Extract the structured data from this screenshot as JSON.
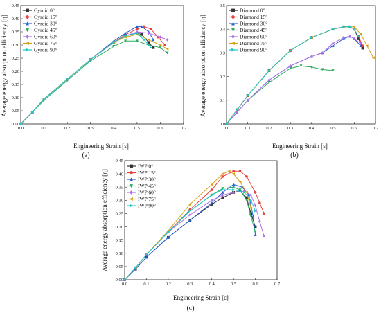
{
  "figure": {
    "panels": [
      {
        "label": "(a)",
        "xlabel": "Engineering Strain [ε]",
        "ylabel": "Average energy absorption efficiency [η]"
      },
      {
        "label": "(b)",
        "xlabel": "Engineering Strain [ε]",
        "ylabel": "Average energy absorption efficiency [η]"
      },
      {
        "label": "(c)",
        "xlabel": "Engineering Strain [ε]",
        "ylabel": "Average energy absorption efficiency [η]"
      }
    ]
  },
  "chart_data": [
    {
      "type": "line",
      "title": "",
      "xlabel": "Engineering Strain [ε]",
      "ylabel": "Average energy absorption efficiency [η]",
      "xlim": [
        0,
        0.7
      ],
      "ylim": [
        0,
        0.45
      ],
      "xticks": [
        "0.0",
        "0.1",
        "0.2",
        "0.3",
        "0.4",
        "0.5",
        "0.6",
        "0.7"
      ],
      "yticks": [
        "0.00",
        "0.05",
        "0.10",
        "0.15",
        "0.20",
        "0.25",
        "0.30",
        "0.35",
        "0.40",
        "0.45"
      ],
      "grid": false,
      "legend_position": "top-left",
      "series": [
        {
          "name": "Gyroid 0°",
          "color": "#333333",
          "marker": "square",
          "x": [
            0,
            0.05,
            0.1,
            0.2,
            0.3,
            0.4,
            0.45,
            0.5,
            0.52,
            0.55,
            0.57
          ],
          "y": [
            0,
            0.045,
            0.095,
            0.17,
            0.245,
            0.31,
            0.335,
            0.345,
            0.34,
            0.31,
            0.29
          ]
        },
        {
          "name": "Gyroid 15°",
          "color": "#e8413c",
          "marker": "circle",
          "x": [
            0,
            0.05,
            0.1,
            0.2,
            0.3,
            0.4,
            0.45,
            0.5,
            0.53,
            0.56,
            0.59,
            0.62
          ],
          "y": [
            0,
            0.045,
            0.095,
            0.17,
            0.245,
            0.31,
            0.34,
            0.36,
            0.37,
            0.36,
            0.33,
            0.3
          ]
        },
        {
          "name": "Gyroid 30°",
          "color": "#2b5fd1",
          "marker": "triangle-up",
          "x": [
            0,
            0.05,
            0.1,
            0.2,
            0.3,
            0.4,
            0.45,
            0.5,
            0.52,
            0.55,
            0.57
          ],
          "y": [
            0,
            0.045,
            0.095,
            0.17,
            0.245,
            0.315,
            0.345,
            0.37,
            0.37,
            0.35,
            0.32
          ]
        },
        {
          "name": "Gyroid 45°",
          "color": "#2aaa5e",
          "marker": "triangle-down",
          "x": [
            0,
            0.05,
            0.1,
            0.2,
            0.3,
            0.4,
            0.45,
            0.5,
            0.55,
            0.6,
            0.63
          ],
          "y": [
            0,
            0.045,
            0.09,
            0.165,
            0.24,
            0.295,
            0.315,
            0.315,
            0.3,
            0.29,
            0.27
          ]
        },
        {
          "name": "Gyroid 60°",
          "color": "#b26ee8",
          "marker": "diamond",
          "x": [
            0,
            0.05,
            0.1,
            0.2,
            0.3,
            0.4,
            0.45,
            0.5,
            0.55,
            0.6,
            0.63
          ],
          "y": [
            0,
            0.045,
            0.095,
            0.17,
            0.245,
            0.31,
            0.335,
            0.35,
            0.345,
            0.33,
            0.32
          ]
        },
        {
          "name": "Gyroid 75°",
          "color": "#d4a017",
          "marker": "triangle-left",
          "x": [
            0,
            0.05,
            0.1,
            0.2,
            0.3,
            0.4,
            0.45,
            0.5,
            0.55,
            0.6,
            0.63
          ],
          "y": [
            0,
            0.045,
            0.095,
            0.17,
            0.245,
            0.31,
            0.33,
            0.34,
            0.32,
            0.3,
            0.285
          ]
        },
        {
          "name": "Gyroid 90°",
          "color": "#1ec8c8",
          "marker": "triangle-right",
          "x": [
            0,
            0.05,
            0.1,
            0.2,
            0.3,
            0.4,
            0.45,
            0.5,
            0.53,
            0.56
          ],
          "y": [
            0,
            0.045,
            0.095,
            0.17,
            0.245,
            0.31,
            0.335,
            0.345,
            0.32,
            0.29
          ]
        }
      ]
    },
    {
      "type": "line",
      "title": "",
      "xlabel": "Engineering Strain [ε]",
      "ylabel": "Average energy absorption efficiency [η]",
      "xlim": [
        0,
        0.7
      ],
      "ylim": [
        0,
        0.5
      ],
      "xticks": [
        "0.0",
        "0.1",
        "0.2",
        "0.3",
        "0.4",
        "0.5",
        "0.6",
        "0.7"
      ],
      "yticks": [
        "0.0",
        "0.1",
        "0.2",
        "0.3",
        "0.4",
        "0.5"
      ],
      "grid": false,
      "legend_position": "top-left",
      "series": [
        {
          "name": "Diamond 0°",
          "color": "#333333",
          "marker": "square",
          "x": [
            0,
            0.05,
            0.1,
            0.2,
            0.3,
            0.4,
            0.5,
            0.55,
            0.58,
            0.6,
            0.62,
            0.64
          ],
          "y": [
            0,
            0.06,
            0.12,
            0.225,
            0.31,
            0.365,
            0.4,
            0.41,
            0.41,
            0.4,
            0.36,
            0.32
          ]
        },
        {
          "name": "Diamond 15°",
          "color": "#e8413c",
          "marker": "circle",
          "x": [
            0,
            0.05,
            0.1,
            0.2,
            0.3,
            0.4,
            0.5,
            0.55,
            0.58,
            0.6,
            0.62,
            0.64
          ],
          "y": [
            0,
            0.06,
            0.12,
            0.225,
            0.31,
            0.365,
            0.4,
            0.41,
            0.41,
            0.4,
            0.37,
            0.33
          ]
        },
        {
          "name": "Diamond 30°",
          "color": "#2b5fd1",
          "marker": "triangle-up",
          "x": [
            0,
            0.05,
            0.1,
            0.2,
            0.3,
            0.4,
            0.45,
            0.5,
            0.55,
            0.58,
            0.6,
            0.63
          ],
          "y": [
            0,
            0.05,
            0.1,
            0.185,
            0.245,
            0.285,
            0.3,
            0.33,
            0.36,
            0.37,
            0.36,
            0.33
          ]
        },
        {
          "name": "Diamond 45°",
          "color": "#2aaa5e",
          "marker": "triangle-down",
          "x": [
            0,
            0.05,
            0.1,
            0.2,
            0.3,
            0.35,
            0.4,
            0.45,
            0.5
          ],
          "y": [
            0,
            0.05,
            0.1,
            0.175,
            0.235,
            0.245,
            0.24,
            0.23,
            0.225
          ]
        },
        {
          "name": "Diamond 60°",
          "color": "#b26ee8",
          "marker": "diamond",
          "x": [
            0,
            0.05,
            0.1,
            0.2,
            0.3,
            0.4,
            0.45,
            0.5,
            0.55,
            0.58,
            0.6,
            0.63
          ],
          "y": [
            0,
            0.05,
            0.1,
            0.185,
            0.245,
            0.285,
            0.3,
            0.34,
            0.365,
            0.37,
            0.36,
            0.34
          ]
        },
        {
          "name": "Diamond 75°",
          "color": "#d4a017",
          "marker": "triangle-left",
          "x": [
            0,
            0.05,
            0.1,
            0.2,
            0.3,
            0.4,
            0.5,
            0.55,
            0.6,
            0.63,
            0.66,
            0.69
          ],
          "y": [
            0,
            0.06,
            0.12,
            0.225,
            0.31,
            0.365,
            0.4,
            0.41,
            0.41,
            0.38,
            0.33,
            0.28
          ]
        },
        {
          "name": "Diamond 90°",
          "color": "#1ec8c8",
          "marker": "triangle-right",
          "x": [
            0,
            0.05,
            0.1,
            0.2,
            0.3,
            0.4,
            0.5,
            0.55,
            0.58,
            0.6,
            0.62
          ],
          "y": [
            0,
            0.06,
            0.12,
            0.225,
            0.31,
            0.365,
            0.4,
            0.41,
            0.41,
            0.4,
            0.37
          ]
        }
      ]
    },
    {
      "type": "line",
      "title": "",
      "xlabel": "Engineering Strain [ε]",
      "ylabel": "Average energy absorption efficiency [η]",
      "xlim": [
        0,
        0.7
      ],
      "ylim": [
        0,
        0.45
      ],
      "xticks": [
        "0.0",
        "0.1",
        "0.2",
        "0.3",
        "0.4",
        "0.5",
        "0.6",
        "0.7"
      ],
      "yticks": [
        "0.00",
        "0.05",
        "0.10",
        "0.15",
        "0.20",
        "0.25",
        "0.30",
        "0.35",
        "0.40",
        "0.45"
      ],
      "grid": false,
      "legend_position": "top-left",
      "series": [
        {
          "name": "IWP 0°",
          "color": "#333333",
          "marker": "square",
          "x": [
            0,
            0.05,
            0.1,
            0.2,
            0.3,
            0.4,
            0.45,
            0.5,
            0.53,
            0.56,
            0.58,
            0.6
          ],
          "y": [
            0,
            0.04,
            0.085,
            0.16,
            0.225,
            0.285,
            0.31,
            0.33,
            0.335,
            0.31,
            0.25,
            0.2
          ]
        },
        {
          "name": "IWP 15°",
          "color": "#e8413c",
          "marker": "circle",
          "x": [
            0,
            0.05,
            0.1,
            0.2,
            0.3,
            0.4,
            0.45,
            0.5,
            0.53,
            0.56,
            0.6,
            0.62,
            0.64
          ],
          "y": [
            0,
            0.045,
            0.095,
            0.18,
            0.265,
            0.34,
            0.39,
            0.41,
            0.41,
            0.39,
            0.33,
            0.29,
            0.25
          ]
        },
        {
          "name": "IWP 30°",
          "color": "#2b5fd1",
          "marker": "triangle-up",
          "x": [
            0,
            0.05,
            0.1,
            0.2,
            0.3,
            0.4,
            0.45,
            0.5,
            0.54,
            0.57,
            0.59,
            0.6
          ],
          "y": [
            0,
            0.04,
            0.085,
            0.16,
            0.225,
            0.29,
            0.33,
            0.36,
            0.35,
            0.32,
            0.24,
            0.17
          ]
        },
        {
          "name": "IWP 45°",
          "color": "#2aaa5e",
          "marker": "triangle-down",
          "x": [
            0,
            0.05,
            0.1,
            0.2,
            0.3,
            0.4,
            0.45,
            0.5,
            0.53,
            0.56,
            0.58,
            0.6
          ],
          "y": [
            0,
            0.045,
            0.095,
            0.18,
            0.26,
            0.32,
            0.345,
            0.35,
            0.34,
            0.3,
            0.24,
            0.18
          ]
        },
        {
          "name": "IWP 60°",
          "color": "#b26ee8",
          "marker": "diamond",
          "x": [
            0,
            0.05,
            0.1,
            0.2,
            0.3,
            0.4,
            0.45,
            0.5,
            0.55,
            0.58,
            0.6,
            0.62,
            0.64
          ],
          "y": [
            0,
            0.045,
            0.095,
            0.18,
            0.245,
            0.3,
            0.32,
            0.33,
            0.335,
            0.32,
            0.28,
            0.22,
            0.165
          ]
        },
        {
          "name": "IWP 75°",
          "color": "#d4a017",
          "marker": "triangle-left",
          "x": [
            0,
            0.05,
            0.1,
            0.2,
            0.3,
            0.4,
            0.45,
            0.48,
            0.5,
            0.53,
            0.56,
            0.58
          ],
          "y": [
            0,
            0.045,
            0.095,
            0.185,
            0.285,
            0.36,
            0.4,
            0.41,
            0.4,
            0.37,
            0.33,
            0.27
          ]
        },
        {
          "name": "IWP 90°",
          "color": "#1ec8c8",
          "marker": "triangle-right",
          "x": [
            0,
            0.05,
            0.1,
            0.2,
            0.3,
            0.4,
            0.45,
            0.5,
            0.55,
            0.58,
            0.6
          ],
          "y": [
            0,
            0.045,
            0.095,
            0.18,
            0.26,
            0.32,
            0.34,
            0.34,
            0.33,
            0.3,
            0.26
          ]
        }
      ]
    }
  ]
}
